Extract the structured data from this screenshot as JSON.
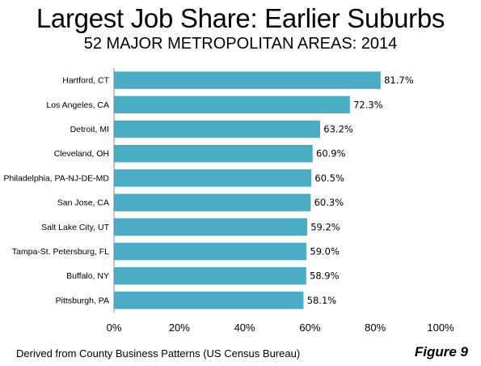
{
  "chart_data": {
    "type": "bar",
    "orientation": "horizontal",
    "title": "Largest Job Share: Earlier Suburbs",
    "subtitle": "52 MAJOR METROPOLITAN AREAS: 2014",
    "categories": [
      "Hartford, CT",
      "Los Angeles, CA",
      "Detroit,  MI",
      "Cleveland, OH",
      "Philadelphia, PA-NJ-DE-MD",
      "San Jose, CA",
      "Salt Lake City, UT",
      "Tampa-St. Petersburg, FL",
      "Buffalo, NY",
      "Pittsburgh, PA"
    ],
    "values": [
      81.7,
      72.3,
      63.2,
      60.9,
      60.5,
      60.3,
      59.2,
      59.0,
      58.9,
      58.1
    ],
    "value_labels": [
      "81.7%",
      "72.3%",
      "63.2%",
      "60.9%",
      "60.5%",
      "60.3%",
      "59.2%",
      "59.0%",
      "58.9%",
      "58.1%"
    ],
    "xlim": [
      0,
      100
    ],
    "x_ticks": [
      0,
      20,
      40,
      60,
      80,
      100
    ],
    "x_tick_labels": [
      "0%",
      "20%",
      "40%",
      "60%",
      "80%",
      "100%"
    ],
    "grid": false,
    "bar_color": "#4bacc6",
    "source": "Derived from County Business Patterns (US Census Bureau)",
    "figure_label": "Figure 9"
  }
}
